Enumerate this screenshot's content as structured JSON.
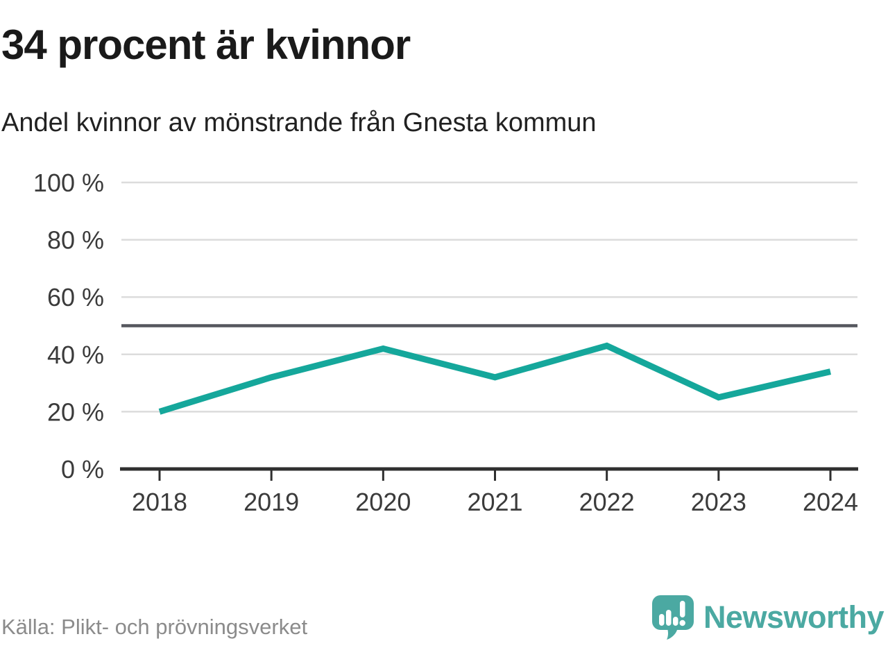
{
  "header": {
    "title": "34 procent är kvinnor",
    "subtitle": "Andel kvinnor av mönstrande från Gnesta kommun"
  },
  "chart_data": {
    "type": "line",
    "title": "34 procent är kvinnor",
    "subtitle": "Andel kvinnor av mönstrande från Gnesta kommun",
    "categories": [
      "2018",
      "2019",
      "2020",
      "2021",
      "2022",
      "2023",
      "2024"
    ],
    "series": [
      {
        "name": "Andel kvinnor av mönstrande",
        "color": "#15a79b",
        "values": [
          20,
          32,
          42,
          32,
          43,
          25,
          34
        ]
      }
    ],
    "xlabel": "",
    "ylabel": "",
    "ylim": [
      0,
      100
    ],
    "yticks": [
      {
        "value": 100,
        "label": "100 %"
      },
      {
        "value": 80,
        "label": "80 %"
      },
      {
        "value": 60,
        "label": "60 %"
      },
      {
        "value": 40,
        "label": "40 %"
      },
      {
        "value": 20,
        "label": "20 %"
      },
      {
        "value": 0,
        "label": "0 %"
      }
    ],
    "reference_line": {
      "value": 50,
      "color": "#55575e"
    },
    "grid": true,
    "legend": false
  },
  "footer": {
    "source": "Källa: Plikt- och prövningsverket",
    "logo_text": "Newsworthy"
  },
  "colors": {
    "line_teal": "#15a79b",
    "logo_teal": "#4ba9a2",
    "gridline": "#dcdcdc",
    "reference_line": "#55575e",
    "axis": "#2f2f2f",
    "title_text": "#1a1a1a",
    "axis_text": "#3b3b3b",
    "source_text": "#8b8b8b"
  }
}
